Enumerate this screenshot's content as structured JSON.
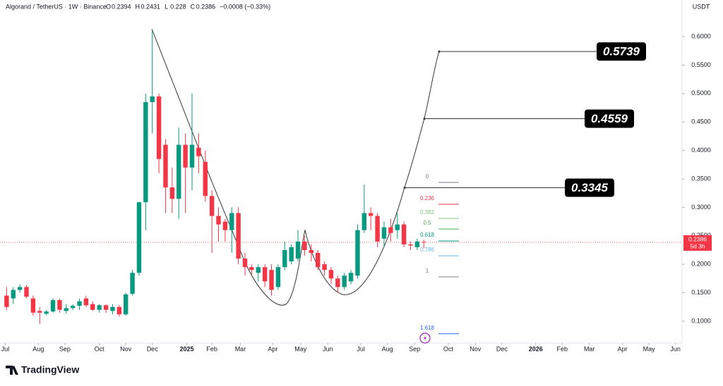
{
  "chart_data": {
    "type": "candlestick",
    "title": "Algorand / TetherUS · 1W · Binance",
    "ohlc_legend": [
      {
        "label": "O",
        "value": 0.2394
      },
      {
        "label": "H",
        "value": 0.2431
      },
      {
        "label": "L",
        "value": 0.228
      },
      {
        "label": "C",
        "value": 0.2386
      }
    ],
    "change": "−0.0008 (−0.33%)",
    "currency": "USDT",
    "countdown": "5d 3h",
    "brand": "TradingView",
    "up_color": "#089981",
    "down_color": "#f23645",
    "x": [
      0,
      1,
      2,
      3,
      4,
      5,
      6,
      7,
      8,
      9,
      10,
      11,
      12,
      13,
      14,
      15,
      16,
      17,
      18,
      19,
      20,
      21,
      22,
      23,
      24,
      25,
      26,
      27,
      28,
      29,
      30,
      31,
      32,
      33,
      34,
      35,
      36,
      37,
      38,
      39,
      40,
      41,
      42,
      43,
      44,
      45,
      46,
      47,
      48,
      49,
      50,
      51,
      52,
      53,
      54,
      55,
      56,
      57,
      58,
      59,
      60,
      61,
      62,
      63
    ],
    "open": [
      0.145,
      0.14,
      0.155,
      0.16,
      0.14,
      0.118,
      0.113,
      0.117,
      0.137,
      0.118,
      0.123,
      0.127,
      0.14,
      0.13,
      0.12,
      0.128,
      0.118,
      0.125,
      0.112,
      0.148,
      0.185,
      0.309,
      0.485,
      0.495,
      0.41,
      0.335,
      0.315,
      0.41,
      0.37,
      0.405,
      0.38,
      0.32,
      0.285,
      0.275,
      0.26,
      0.29,
      0.21,
      0.195,
      0.185,
      0.195,
      0.19,
      0.16,
      0.195,
      0.205,
      0.21,
      0.24,
      0.225,
      0.22,
      0.2,
      0.19,
      0.175,
      0.16,
      0.17,
      0.18,
      0.26,
      0.29,
      0.285,
      0.245,
      0.265,
      0.26,
      0.27,
      0.235,
      0.23,
      0.2394
    ],
    "high": [
      0.16,
      0.16,
      0.165,
      0.163,
      0.145,
      0.125,
      0.12,
      0.14,
      0.14,
      0.13,
      0.13,
      0.14,
      0.145,
      0.135,
      0.13,
      0.13,
      0.13,
      0.128,
      0.15,
      0.19,
      0.31,
      0.5,
      0.61,
      0.5,
      0.42,
      0.37,
      0.44,
      0.43,
      0.5,
      0.43,
      0.4,
      0.33,
      0.3,
      0.28,
      0.3,
      0.3,
      0.22,
      0.2,
      0.2,
      0.2,
      0.2,
      0.2,
      0.24,
      0.235,
      0.26,
      0.25,
      0.235,
      0.225,
      0.205,
      0.195,
      0.18,
      0.185,
      0.19,
      0.27,
      0.34,
      0.3,
      0.29,
      0.275,
      0.28,
      0.29,
      0.275,
      0.24,
      0.245,
      0.2431
    ],
    "low": [
      0.12,
      0.13,
      0.15,
      0.14,
      0.11,
      0.095,
      0.11,
      0.115,
      0.115,
      0.113,
      0.12,
      0.12,
      0.125,
      0.118,
      0.115,
      0.115,
      0.112,
      0.108,
      0.11,
      0.145,
      0.18,
      0.26,
      0.43,
      0.36,
      0.29,
      0.29,
      0.28,
      0.29,
      0.33,
      0.36,
      0.31,
      0.22,
      0.24,
      0.24,
      0.22,
      0.2,
      0.18,
      0.18,
      0.17,
      0.16,
      0.145,
      0.155,
      0.19,
      0.2,
      0.205,
      0.215,
      0.205,
      0.19,
      0.18,
      0.165,
      0.15,
      0.155,
      0.165,
      0.175,
      0.255,
      0.26,
      0.23,
      0.23,
      0.24,
      0.245,
      0.23,
      0.225,
      0.225,
      0.228
    ],
    "close": [
      0.125,
      0.155,
      0.16,
      0.143,
      0.115,
      0.115,
      0.117,
      0.137,
      0.12,
      0.123,
      0.127,
      0.135,
      0.128,
      0.12,
      0.128,
      0.12,
      0.125,
      0.112,
      0.147,
      0.185,
      0.309,
      0.485,
      0.495,
      0.385,
      0.335,
      0.315,
      0.41,
      0.37,
      0.41,
      0.39,
      0.32,
      0.285,
      0.27,
      0.26,
      0.29,
      0.21,
      0.195,
      0.19,
      0.195,
      0.17,
      0.155,
      0.195,
      0.225,
      0.23,
      0.24,
      0.225,
      0.22,
      0.195,
      0.19,
      0.175,
      0.16,
      0.18,
      0.185,
      0.26,
      0.29,
      0.285,
      0.24,
      0.265,
      0.255,
      0.27,
      0.235,
      0.233,
      0.24,
      0.2386
    ],
    "xlim": [
      -1,
      102
    ],
    "xticks": [
      {
        "value": -0.2,
        "label": "Jul"
      },
      {
        "value": 4.8,
        "label": "Aug"
      },
      {
        "value": 8.8,
        "label": "Sep"
      },
      {
        "value": 14,
        "label": "Oct"
      },
      {
        "value": 18,
        "label": "Nov"
      },
      {
        "value": 22,
        "label": "Dec"
      },
      {
        "value": 27.2,
        "label": "2025"
      },
      {
        "value": 31,
        "label": "Feb"
      },
      {
        "value": 35.3,
        "label": "Mar"
      },
      {
        "value": 40.2,
        "label": "Apr"
      },
      {
        "value": 44.4,
        "label": "May"
      },
      {
        "value": 48.5,
        "label": "Jun"
      },
      {
        "value": 53.5,
        "label": "Jul"
      },
      {
        "value": 57.5,
        "label": "Aug"
      },
      {
        "value": 61.6,
        "label": "Sep"
      },
      {
        "value": 66.7,
        "label": "Oct"
      },
      {
        "value": 70.8,
        "label": "Nov"
      },
      {
        "value": 74.8,
        "label": "Dec"
      },
      {
        "value": 79.9,
        "label": "2026"
      },
      {
        "value": 83.9,
        "label": "Feb"
      },
      {
        "value": 88,
        "label": "Mar"
      },
      {
        "value": 93,
        "label": "Apr"
      },
      {
        "value": 97,
        "label": "May"
      },
      {
        "value": 101,
        "label": "Jun"
      }
    ],
    "ylim": [
      0.0616,
      0.6545
    ],
    "yticks": [
      {
        "value": 0.6,
        "label": "0.6000"
      },
      {
        "value": 0.55,
        "label": "0.5500"
      },
      {
        "value": 0.5,
        "label": "0.5000"
      },
      {
        "value": 0.45,
        "label": "0.4500"
      },
      {
        "value": 0.4,
        "label": "0.4000"
      },
      {
        "value": 0.35,
        "label": "0.3500"
      },
      {
        "value": 0.3,
        "label": "0.3000"
      },
      {
        "value": 0.25,
        "label": "0.2500"
      },
      {
        "value": 0.2,
        "label": "0.2000"
      },
      {
        "value": 0.15,
        "label": "0.1500"
      },
      {
        "value": 0.1,
        "label": "0.1000"
      }
    ],
    "targets": [
      0.5739,
      0.4559,
      0.3345
    ],
    "fib_levels": [
      {
        "ratio": 0,
        "price": 0.3438,
        "color": "#787b86"
      },
      {
        "ratio": 0.236,
        "price": 0.3054,
        "color": "#f23645"
      },
      {
        "ratio": 0.382,
        "price": 0.2807,
        "color": "#81c784"
      },
      {
        "ratio": 0.5,
        "price": 0.262,
        "color": "#4caf50"
      },
      {
        "ratio": 0.618,
        "price": 0.241,
        "color": "#089981"
      },
      {
        "ratio": 0.786,
        "price": 0.215,
        "color": "#64b5f6"
      },
      {
        "ratio": 1,
        "price": 0.178,
        "color": "#787b86"
      },
      {
        "ratio": 1.618,
        "price": 0.078,
        "color": "#2962ff"
      }
    ]
  }
}
